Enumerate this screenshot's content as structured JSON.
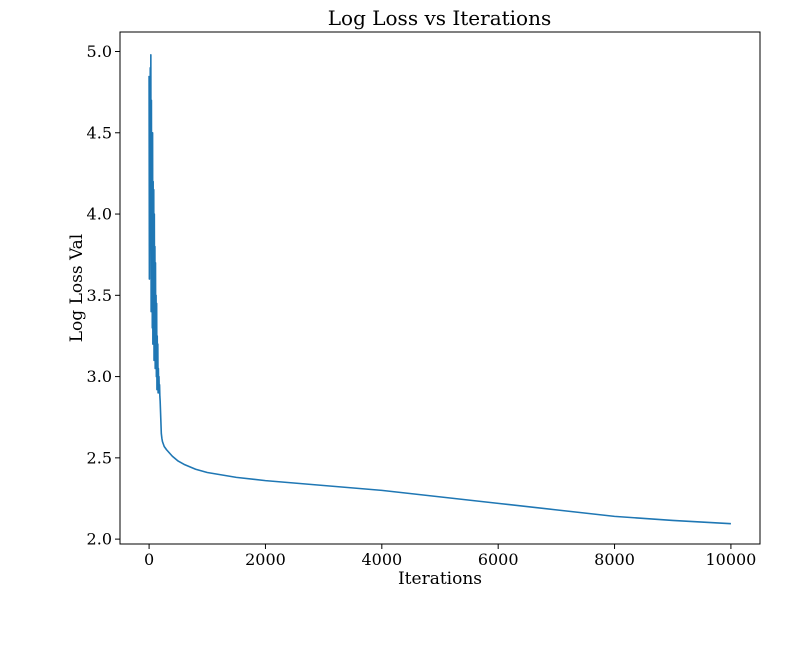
{
  "chart_data": {
    "type": "line",
    "title": "Log Loss vs Iterations",
    "xlabel": "Iterations",
    "ylabel": "Log Loss Val",
    "xlim": [
      -500,
      10500
    ],
    "ylim": [
      1.97,
      5.12
    ],
    "xticks": [
      0,
      2000,
      4000,
      6000,
      8000,
      10000
    ],
    "xtick_labels": [
      "0",
      "2000",
      "4000",
      "6000",
      "8000",
      "10000"
    ],
    "yticks": [
      2.0,
      2.5,
      3.0,
      3.5,
      4.0,
      4.5,
      5.0
    ],
    "ytick_labels": [
      "2.0",
      "2.5",
      "3.0",
      "3.5",
      "4.0",
      "4.5",
      "5.0"
    ],
    "grid": false,
    "legend": "none",
    "series": [
      {
        "color": "#1f77b4",
        "x": [
          0,
          5,
          10,
          15,
          20,
          25,
          30,
          35,
          40,
          45,
          50,
          55,
          60,
          65,
          70,
          75,
          80,
          85,
          90,
          95,
          100,
          105,
          110,
          115,
          120,
          125,
          130,
          135,
          140,
          145,
          150,
          155,
          160,
          165,
          170,
          175,
          180,
          185,
          190,
          195,
          200,
          210,
          220,
          230,
          240,
          260,
          300,
          400,
          500,
          600,
          800,
          1000,
          1500,
          2000,
          3000,
          4000,
          5000,
          6000,
          7000,
          8000,
          9000,
          10000
        ],
        "y": [
          4.85,
          3.6,
          4.35,
          3.8,
          4.9,
          3.9,
          4.98,
          3.4,
          4.7,
          3.5,
          4.4,
          3.3,
          4.5,
          3.2,
          4.2,
          3.4,
          4.15,
          3.1,
          4.0,
          3.2,
          3.8,
          3.05,
          3.7,
          3.1,
          3.5,
          3.0,
          3.45,
          2.92,
          3.25,
          2.95,
          3.2,
          2.9,
          3.05,
          2.93,
          3.0,
          2.9,
          2.95,
          2.88,
          2.85,
          2.8,
          2.75,
          2.65,
          2.62,
          2.6,
          2.59,
          2.57,
          2.55,
          2.51,
          2.48,
          2.46,
          2.43,
          2.41,
          2.38,
          2.36,
          2.33,
          2.3,
          2.26,
          2.22,
          2.18,
          2.14,
          2.115,
          2.095
        ]
      }
    ]
  }
}
